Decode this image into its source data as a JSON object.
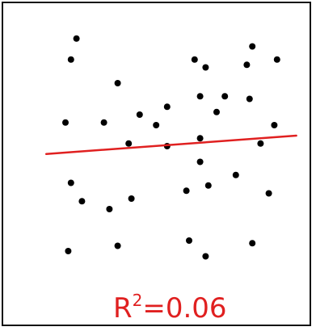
{
  "chart_data": {
    "type": "scatter",
    "title": "",
    "xlabel": "",
    "ylabel": "",
    "xlim": [
      0,
      10
    ],
    "ylim": [
      0,
      10
    ],
    "grid": false,
    "points": [
      {
        "x": 1.9,
        "y": 9.3
      },
      {
        "x": 1.7,
        "y": 8.5
      },
      {
        "x": 3.4,
        "y": 7.6
      },
      {
        "x": 6.2,
        "y": 8.5
      },
      {
        "x": 6.6,
        "y": 8.2
      },
      {
        "x": 8.3,
        "y": 9.0
      },
      {
        "x": 8.1,
        "y": 8.3
      },
      {
        "x": 9.2,
        "y": 8.5
      },
      {
        "x": 6.4,
        "y": 7.1
      },
      {
        "x": 7.3,
        "y": 7.1
      },
      {
        "x": 8.2,
        "y": 7.0
      },
      {
        "x": 5.2,
        "y": 6.7
      },
      {
        "x": 4.2,
        "y": 6.4
      },
      {
        "x": 7.0,
        "y": 6.5
      },
      {
        "x": 1.5,
        "y": 6.1
      },
      {
        "x": 2.9,
        "y": 6.1
      },
      {
        "x": 4.8,
        "y": 6.0
      },
      {
        "x": 9.1,
        "y": 6.0
      },
      {
        "x": 3.8,
        "y": 5.3
      },
      {
        "x": 5.2,
        "y": 5.2
      },
      {
        "x": 6.4,
        "y": 5.5
      },
      {
        "x": 8.6,
        "y": 5.3
      },
      {
        "x": 6.4,
        "y": 4.6
      },
      {
        "x": 7.7,
        "y": 4.1
      },
      {
        "x": 1.7,
        "y": 3.8
      },
      {
        "x": 6.7,
        "y": 3.7
      },
      {
        "x": 5.9,
        "y": 3.5
      },
      {
        "x": 8.9,
        "y": 3.4
      },
      {
        "x": 2.1,
        "y": 3.1
      },
      {
        "x": 3.9,
        "y": 3.2
      },
      {
        "x": 3.1,
        "y": 2.8
      },
      {
        "x": 6.0,
        "y": 1.6
      },
      {
        "x": 1.6,
        "y": 1.2
      },
      {
        "x": 3.4,
        "y": 1.4
      },
      {
        "x": 6.6,
        "y": 1.0
      },
      {
        "x": 8.3,
        "y": 1.5
      }
    ],
    "fit_line": {
      "x": [
        0.8,
        9.9
      ],
      "y": [
        4.9,
        5.6
      ],
      "color": "#e02020"
    },
    "annotation": {
      "base": "R",
      "superscript": "2",
      "rest": "=0.06"
    },
    "colors": {
      "points": "#000000",
      "fit": "#e02020",
      "annotation": "#e02020"
    }
  }
}
